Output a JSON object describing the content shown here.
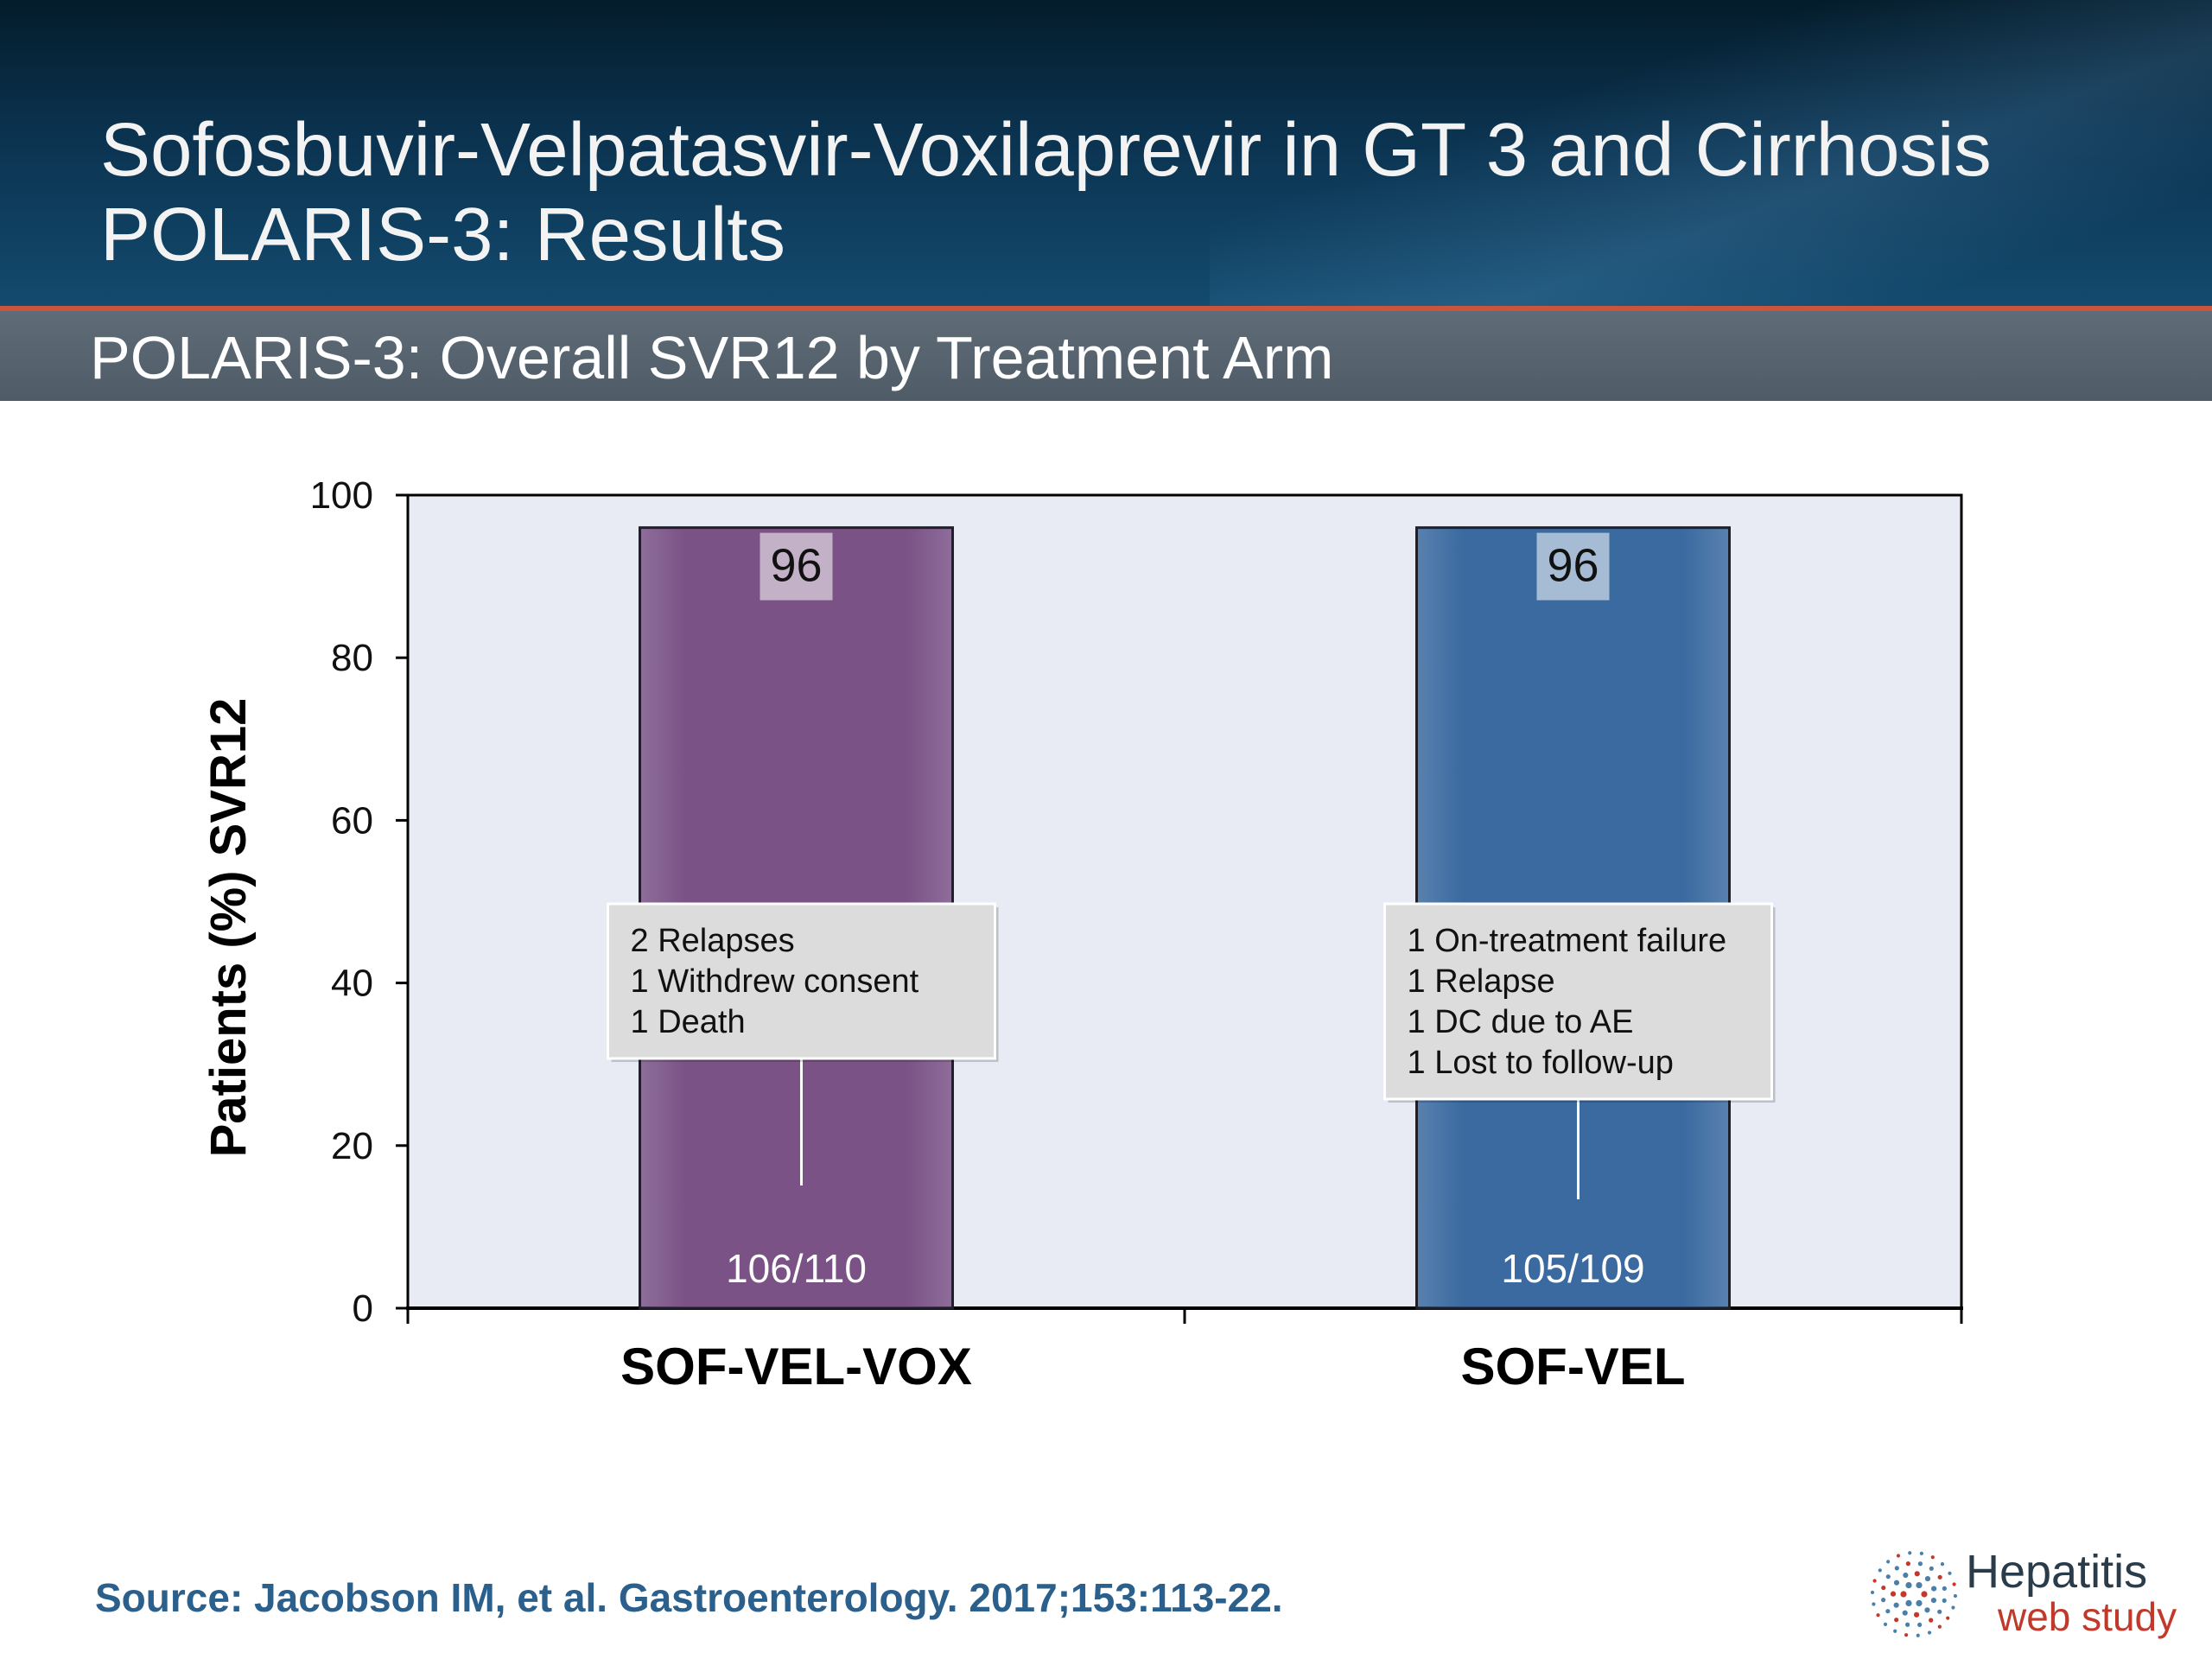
{
  "slide": {
    "title_line1": "Sofosbuvir-Velpatasvir-Voxilaprevir in GT 3 and Cirrhosis",
    "title_line2": "POLARIS-3: Results",
    "subtitle": "POLARIS-3: Overall SVR12 by Treatment Arm",
    "source": "Source: Jacobson IM, et al. Gastroenterology. 2017;153:113-22."
  },
  "logo": {
    "line1": "Hepatitis",
    "line2": "web study"
  },
  "colors": {
    "sof_vel_vox": "#7a5286",
    "sof_vel": "#3a6aa0",
    "plot_background": "#e8ebf3",
    "callout": "#dcdcdc"
  },
  "chart_data": {
    "type": "bar",
    "categories": [
      "SOF-VEL-VOX",
      "SOF-VEL"
    ],
    "values": [
      96,
      96
    ],
    "data_labels": [
      "96",
      "96"
    ],
    "counts": [
      "106/110",
      "105/109"
    ],
    "annotations": [
      [
        "2 Relapses",
        "1 Withdrew consent",
        "1 Death"
      ],
      [
        "1 On-treatment failure",
        "1 Relapse",
        "1 DC due to AE",
        "1 Lost to follow-up"
      ]
    ],
    "ylabel": "Patients (%) SVR12",
    "xlabel": "",
    "ylim": [
      0,
      100
    ],
    "yticks": [
      0,
      20,
      40,
      60,
      80,
      100
    ],
    "grid": false,
    "legend": "none"
  }
}
